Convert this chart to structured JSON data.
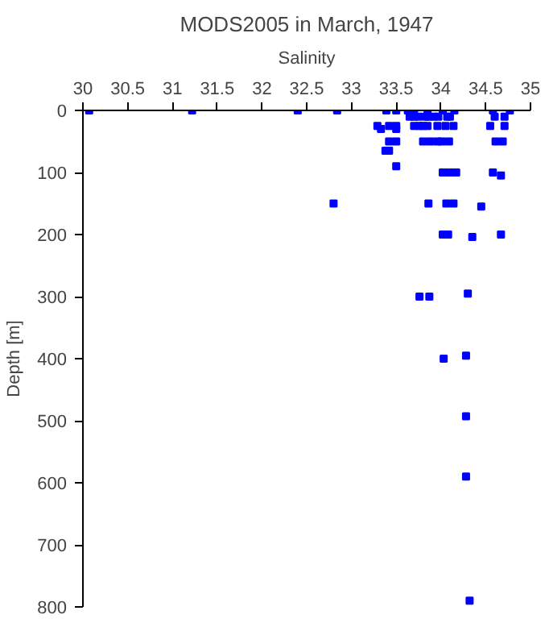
{
  "chart_data": {
    "type": "scatter",
    "title": "MODS2005 in March, 1947",
    "xlabel": "Salinity",
    "ylabel": "Depth [m]",
    "xlim": [
      30,
      35
    ],
    "xticks": [
      30,
      30.5,
      31,
      31.5,
      32,
      32.5,
      33,
      33.5,
      34,
      34.5,
      35
    ],
    "ylim": [
      800,
      0
    ],
    "yticks": [
      0,
      100,
      200,
      300,
      400,
      500,
      600,
      700,
      800
    ],
    "grid": false,
    "marker": "square",
    "series": [
      {
        "color": "#0000ff",
        "x": [
          30.07,
          31.22,
          32.4,
          32.84,
          33.39,
          33.5,
          33.63,
          33.7,
          33.85,
          34.02,
          34.15,
          34.58,
          34.77,
          33.65,
          33.7,
          33.75,
          33.83,
          33.86,
          33.92,
          33.97,
          34.07,
          34.1,
          34.6,
          34.71,
          33.29,
          33.33,
          33.42,
          33.5,
          33.5,
          33.7,
          33.76,
          33.8,
          33.85,
          33.96,
          34.05,
          34.14,
          34.55,
          34.71,
          33.42,
          33.5,
          33.8,
          33.88,
          33.96,
          34.01,
          34.09,
          34.61,
          34.69,
          33.38,
          33.42,
          33.5,
          34.02,
          34.08,
          34.14,
          34.17,
          34.58,
          34.67,
          32.8,
          33.86,
          34.06,
          34.14,
          34.45,
          34.02,
          34.08,
          34.35,
          34.67,
          33.76,
          33.87,
          34.3,
          34.03,
          34.28,
          34.28,
          34.28,
          34.32
        ],
        "values": [
          0,
          0,
          0,
          0,
          0,
          0,
          0,
          0,
          0,
          0,
          0,
          0,
          0,
          10,
          10,
          10,
          10,
          10,
          10,
          10,
          10,
          10,
          10,
          10,
          25,
          30,
          25,
          25,
          30,
          25,
          25,
          25,
          25,
          25,
          25,
          25,
          25,
          25,
          50,
          50,
          50,
          50,
          50,
          50,
          50,
          50,
          50,
          65,
          65,
          90,
          100,
          100,
          100,
          100,
          100,
          105,
          150,
          150,
          150,
          150,
          155,
          200,
          200,
          204,
          200,
          300,
          300,
          295,
          400,
          395,
          493,
          590,
          790
        ]
      }
    ]
  }
}
